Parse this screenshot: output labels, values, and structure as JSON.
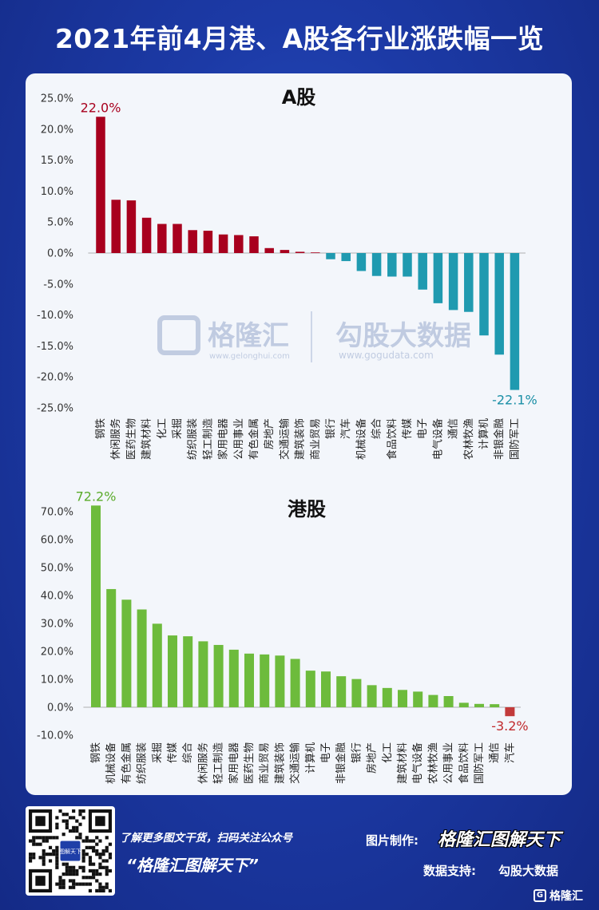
{
  "page": {
    "title": "2021年前4月港、A股各行业涨跌幅一览"
  },
  "chart_data": [
    {
      "type": "bar",
      "title": "A股",
      "unit": "%",
      "ylim": [
        -25,
        25
      ],
      "yticks": [
        25,
        20,
        15,
        10,
        5,
        0,
        -5,
        -10,
        -15,
        -20,
        -25
      ],
      "ytick_labels": [
        "25.0%",
        "20.0%",
        "15.0%",
        "10.0%",
        "5.0%",
        "0.0%",
        "-5.0%",
        "-10.0%",
        "-15.0%",
        "-20.0%",
        "-25.0%"
      ],
      "categories": [
        "钢铁",
        "休闲服务",
        "医药生物",
        "建筑材料",
        "化工",
        "采掘",
        "纺织服装",
        "轻工制造",
        "家用电器",
        "公用事业",
        "有色金属",
        "房地产",
        "交通运输",
        "建筑装饰",
        "商业贸易",
        "银行",
        "汽车",
        "机械设备",
        "综合",
        "食品饮料",
        "传媒",
        "电子",
        "电气设备",
        "通信",
        "农林牧渔",
        "计算机",
        "非银金融",
        "国防军工"
      ],
      "values": [
        22.0,
        8.6,
        8.5,
        5.7,
        4.7,
        4.7,
        3.7,
        3.6,
        3.0,
        2.9,
        2.7,
        0.8,
        0.5,
        0.2,
        0.1,
        -1.0,
        -1.3,
        -2.9,
        -3.7,
        -3.8,
        -3.8,
        -5.9,
        -8.1,
        -9.2,
        -9.5,
        -13.3,
        -16.4,
        -22.1
      ],
      "positive_color": "#a8001e",
      "negative_color": "#1f9ab0",
      "annotations": [
        {
          "category": "钢铁",
          "label": "22.0%",
          "color": "#a8001e"
        },
        {
          "category": "国防军工",
          "label": "-22.1%",
          "color": "#1a8fa6"
        }
      ]
    },
    {
      "type": "bar",
      "title": "港股",
      "unit": "%",
      "ylim": [
        -10,
        70
      ],
      "yticks": [
        70,
        60,
        50,
        40,
        30,
        20,
        10,
        0,
        -10
      ],
      "ytick_labels": [
        "70.0%",
        "60.0%",
        "50.0%",
        "40.0%",
        "30.0%",
        "20.0%",
        "10.0%",
        "0.0%",
        "-10.0%"
      ],
      "categories": [
        "钢铁",
        "机械设备",
        "有色金属",
        "纺织服装",
        "采掘",
        "传媒",
        "综合",
        "休闲服务",
        "轻工制造",
        "家用电器",
        "医药生物",
        "商业贸易",
        "建筑装饰",
        "交通运输",
        "计算机",
        "电子",
        "非银金融",
        "银行",
        "房地产",
        "化工",
        "建筑材料",
        "电气设备",
        "农林牧渔",
        "公用事业",
        "食品饮料",
        "国防军工",
        "通信",
        "汽车"
      ],
      "values": [
        72.2,
        42.3,
        38.5,
        35.0,
        29.9,
        25.7,
        25.4,
        23.6,
        22.3,
        20.6,
        19.2,
        18.9,
        18.5,
        17.3,
        13.1,
        12.8,
        11.1,
        10.1,
        7.9,
        6.9,
        6.2,
        5.6,
        4.4,
        4.0,
        1.6,
        1.2,
        1.1,
        -3.2
      ],
      "positive_color": "#6dbb3c",
      "negative_color": "#c23a3a",
      "annotations": [
        {
          "category": "钢铁",
          "label": "72.2%",
          "color": "#5aab2a"
        },
        {
          "category": "汽车",
          "label": "-3.2%",
          "color": "#c0282c"
        }
      ]
    }
  ],
  "watermark": {
    "brand": "格隆汇",
    "brand_url": "www.gelonghui.com",
    "partner": "勾股大数据",
    "partner_url": "www.gogudata.com"
  },
  "footer": {
    "promo_line1": "了解更多图文干货，扫码关注公众号",
    "promo_line2": "“格隆汇图解天下”",
    "made_by_label": "图片制作:",
    "made_by_value": "格隆汇图解天下",
    "data_support_label": "数据支持:",
    "data_support_value": "勾股大数据",
    "logo_text": "格隆汇",
    "qr_center_text": "图解天下"
  },
  "colors": {
    "background": "#1c3aa6",
    "panel": "#f3f6fb"
  }
}
